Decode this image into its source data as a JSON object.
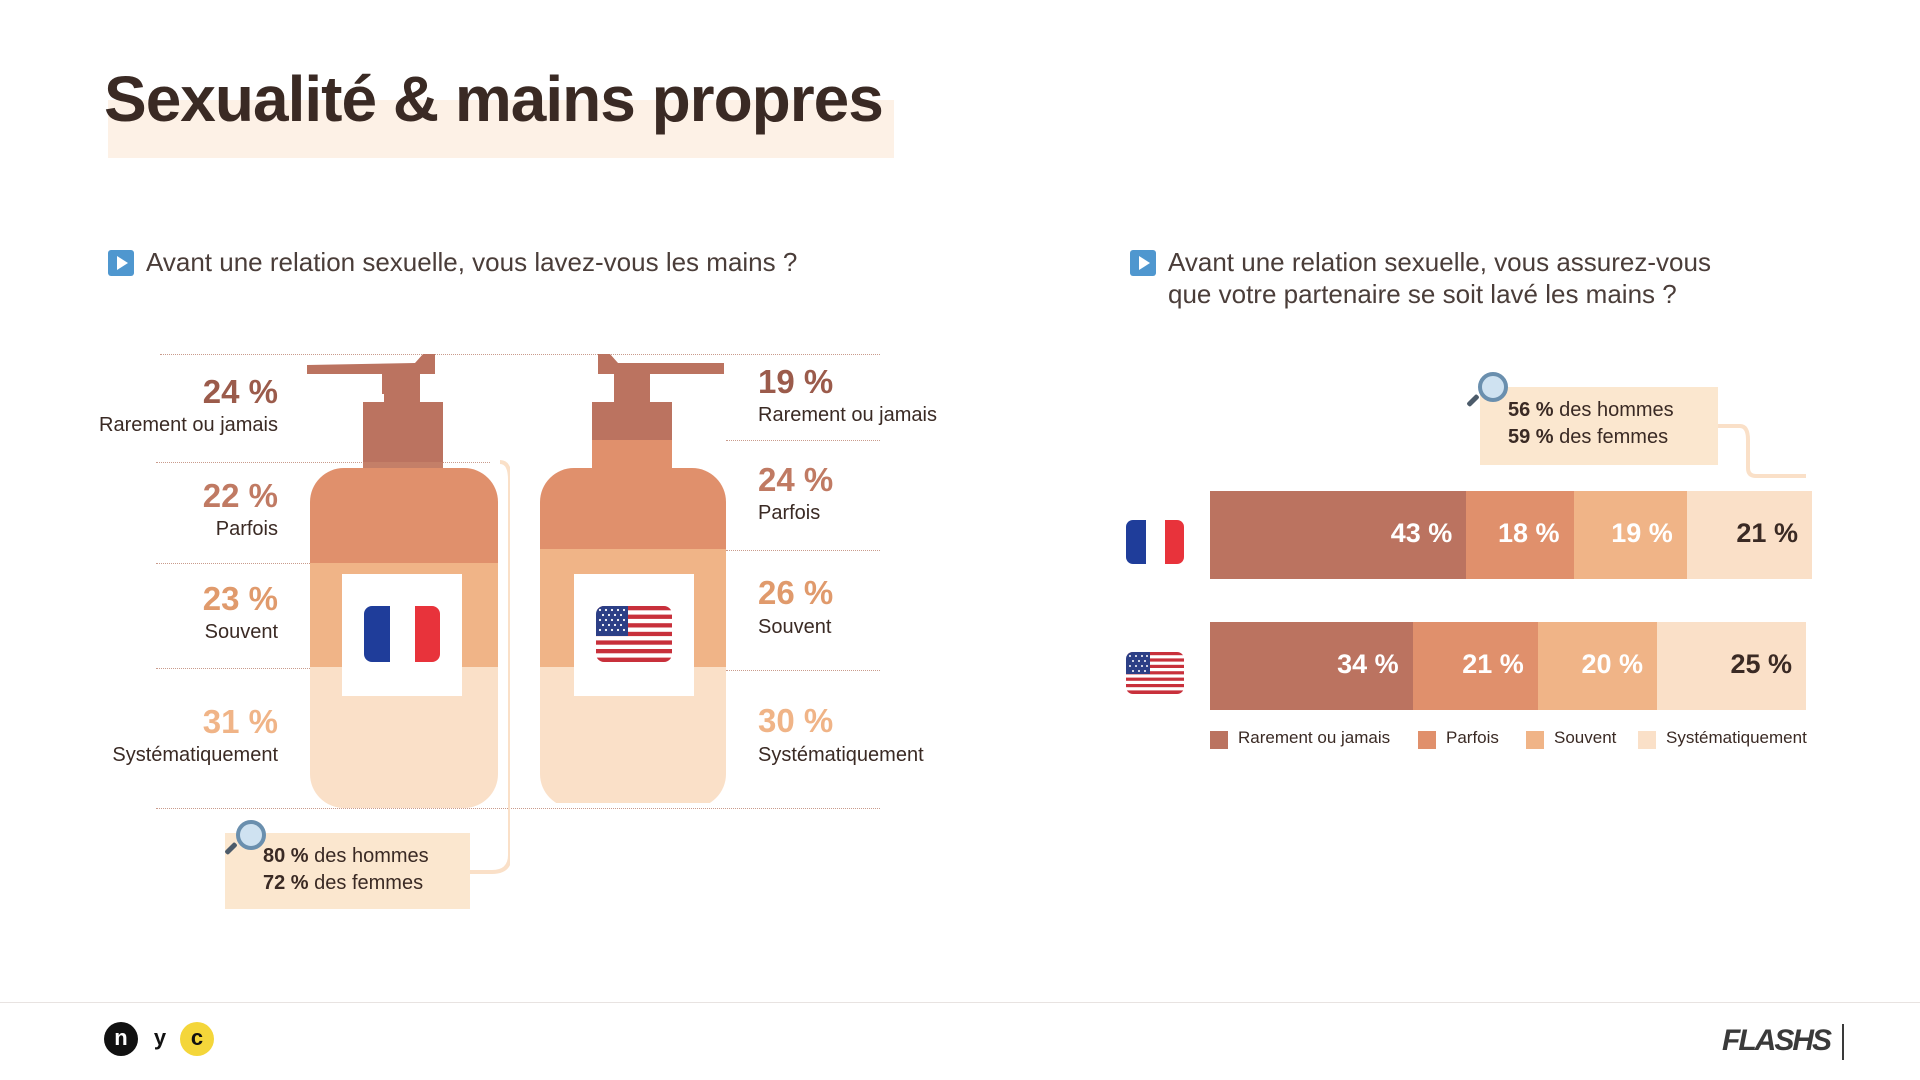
{
  "title": "Sexualité & mains propres",
  "colors": {
    "rarement": "#bb7360",
    "parfois": "#e0906c",
    "souvent": "#f0b487",
    "systematiquement": "#fae0c8",
    "accent_blue": "#4f97cf"
  },
  "left_question": "Avant une relation sexuelle, vous lavez-vous les mains ?",
  "right_question": {
    "line1": "Avant une relation sexuelle, vous assurez-vous",
    "line2": "que votre partenaire se soit lavé les mains ?"
  },
  "categories": [
    "Rarement ou jamais",
    "Parfois",
    "Souvent",
    "Systématiquement"
  ],
  "left_callout": {
    "men_pct": "80 %",
    "men_label": "des hommes",
    "women_pct": "72 %",
    "women_label": "des femmes"
  },
  "right_callout": {
    "men_pct": "56 %",
    "men_label": "des hommes",
    "women_pct": "59 %",
    "women_label": "des femmes"
  },
  "footer": {
    "logo_n": "n",
    "logo_y": "y",
    "logo_c": "c",
    "brand": "FLASHS"
  },
  "chart_data": [
    {
      "type": "bar",
      "title": "Avant une relation sexuelle, vous lavez-vous les mains ?",
      "categories": [
        "Rarement ou jamais",
        "Parfois",
        "Souvent",
        "Systématiquement"
      ],
      "series": [
        {
          "name": "France",
          "values": [
            24,
            22,
            23,
            31
          ],
          "labels": [
            "24 %",
            "22 %",
            "23 %",
            "31 %"
          ]
        },
        {
          "name": "États-Unis",
          "values": [
            19,
            24,
            26,
            30
          ],
          "labels": [
            "19 %",
            "24 %",
            "26 %",
            "30 %"
          ]
        }
      ],
      "unit": "%"
    },
    {
      "type": "bar",
      "orientation": "horizontal",
      "stacked": true,
      "title": "Avant une relation sexuelle, vous assurez-vous que votre partenaire se soit lavé les mains ?",
      "rows": [
        "France",
        "États-Unis"
      ],
      "series": [
        {
          "name": "Rarement ou jamais",
          "values": [
            43,
            34
          ],
          "labels": [
            "43 %",
            "34 %"
          ]
        },
        {
          "name": "Parfois",
          "values": [
            18,
            21
          ],
          "labels": [
            "18 %",
            "21 %"
          ]
        },
        {
          "name": "Souvent",
          "values": [
            19,
            20
          ],
          "labels": [
            "19 %",
            "20 %"
          ]
        },
        {
          "name": "Systématiquement",
          "values": [
            21,
            25
          ],
          "labels": [
            "21 %",
            "25 %"
          ]
        }
      ],
      "legend": "bottom",
      "unit": "%"
    }
  ]
}
